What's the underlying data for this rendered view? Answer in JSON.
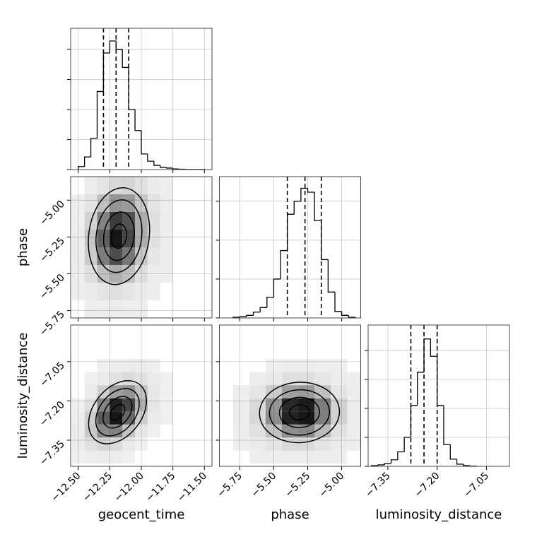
{
  "chart_data": [
    {
      "type": "histogram",
      "bins": [
        -12.5,
        -12.45,
        -12.4,
        -12.35,
        -12.3,
        -12.25,
        -12.2,
        -12.15,
        -12.1,
        -12.05,
        -12,
        -11.95,
        -11.9,
        -11.85,
        -11.8,
        -11.75,
        -11.7,
        -11.65,
        -11.6,
        -11.55,
        -11.5
      ],
      "values": [
        25,
        105,
        260,
        650,
        970,
        1070,
        1000,
        850,
        500,
        325,
        130,
        70,
        35,
        18,
        12,
        5,
        3,
        1,
        1,
        1
      ],
      "quantiles": [
        -12.3,
        -12.2,
        -12.1
      ],
      "color": "#000000",
      "xlim": [
        -12.56,
        -11.44
      ],
      "xticks": [
        -12.5,
        -12.25,
        -12,
        -11.75,
        -11.5
      ],
      "ylim": [
        0,
        1176
      ],
      "yticks": [
        0,
        250,
        500,
        750,
        1000
      ],
      "grid": true
    },
    {
      "type": "hist2d",
      "ylabel": "phase",
      "color": "#000000",
      "x_bins": [
        -12.55,
        -12.45,
        -12.35,
        -12.25,
        -12.15,
        -12.05,
        -11.95,
        -11.85,
        -11.75
      ],
      "y_bins": [
        -5.8,
        -5.68,
        -5.56,
        -5.44,
        -5.32,
        -5.2,
        -5.08,
        -4.96,
        -4.84
      ],
      "values": [
        [
          0,
          1,
          2,
          3,
          2,
          1,
          0,
          0
        ],
        [
          1,
          4,
          10,
          14,
          10,
          4,
          1,
          0
        ],
        [
          2,
          14,
          40,
          55,
          40,
          14,
          3,
          1
        ],
        [
          3,
          30,
          95,
          135,
          100,
          35,
          8,
          1
        ],
        [
          3,
          35,
          120,
          180,
          140,
          55,
          12,
          2
        ],
        [
          2,
          25,
          90,
          150,
          130,
          55,
          14,
          3
        ],
        [
          1,
          10,
          40,
          75,
          70,
          35,
          10,
          2
        ],
        [
          0,
          3,
          10,
          20,
          22,
          12,
          4,
          1
        ]
      ],
      "xlim": [
        -12.56,
        -11.44
      ],
      "xticks": [
        -12.5,
        -12.25,
        -12,
        -11.75,
        -11.5
      ],
      "ylim": [
        -5.8,
        -4.84
      ],
      "yticks": [
        {
          "value": -5.75,
          "label": "−5.75"
        },
        {
          "value": -5.5,
          "label": "−5.50"
        },
        {
          "value": -5.25,
          "label": "−5.25"
        },
        {
          "value": -5,
          "label": "−5.00"
        }
      ],
      "grid": true
    },
    {
      "type": "histogram",
      "bins": [
        -5.8,
        -5.75,
        -5.7,
        -5.65,
        -5.6,
        -5.55,
        -5.5,
        -5.45,
        -5.4,
        -5.35,
        -5.3,
        -5.25,
        -5.2,
        -5.15,
        -5.1,
        -5.05,
        -5,
        -4.95,
        -4.9
      ],
      "values": [
        5,
        10,
        20,
        45,
        80,
        160,
        300,
        520,
        800,
        900,
        1000,
        970,
        750,
        450,
        200,
        50,
        20,
        5
      ],
      "quantiles": [
        -5.4,
        -5.27,
        -5.15
      ],
      "color": "#000000",
      "xlim": [
        -5.9,
        -4.86
      ],
      "xticks": [
        -5.75,
        -5.5,
        -5.25,
        -5
      ],
      "ylim": [
        0,
        1090
      ],
      "yticks": [
        0,
        300,
        600,
        900
      ],
      "grid": true
    },
    {
      "type": "hist2d",
      "xlabel": "geocent_time",
      "ylabel": "luminosity_distance",
      "color": "#000000",
      "x_bins": [
        -12.55,
        -12.45,
        -12.35,
        -12.25,
        -12.15,
        -12.05,
        -11.95,
        -11.85,
        -11.75
      ],
      "y_bins": [
        -7.44,
        -7.39,
        -7.34,
        -7.29,
        -7.24,
        -7.19,
        -7.14,
        -7.09,
        -7.04
      ],
      "values": [
        [
          1,
          3,
          4,
          3,
          1,
          0,
          0,
          0
        ],
        [
          3,
          15,
          25,
          18,
          6,
          1,
          0,
          0
        ],
        [
          4,
          35,
          90,
          95,
          40,
          8,
          1,
          0
        ],
        [
          2,
          30,
          130,
          190,
          120,
          30,
          4,
          1
        ],
        [
          1,
          15,
          95,
          180,
          150,
          55,
          8,
          1
        ],
        [
          0,
          4,
          30,
          70,
          80,
          40,
          8,
          1
        ],
        [
          0,
          1,
          5,
          12,
          18,
          12,
          4,
          1
        ],
        [
          0,
          0,
          1,
          2,
          3,
          3,
          1,
          0
        ]
      ],
      "xlim": [
        -12.56,
        -11.44
      ],
      "xticks": [
        {
          "value": -12.5,
          "label": "−12.50"
        },
        {
          "value": -12.25,
          "label": "−12.25"
        },
        {
          "value": -12,
          "label": "−12.00"
        },
        {
          "value": -11.75,
          "label": "−11.75"
        },
        {
          "value": -11.5,
          "label": "−11.50"
        }
      ],
      "ylim": [
        -7.45,
        -6.91
      ],
      "yticks": [
        {
          "value": -7.35,
          "label": "−7.35"
        },
        {
          "value": -7.2,
          "label": "−7.20"
        },
        {
          "value": -7.05,
          "label": "−7.05"
        }
      ],
      "grid": true
    },
    {
      "type": "hist2d",
      "xlabel": "phase",
      "color": "#000000",
      "x_bins": [
        -5.8,
        -5.68,
        -5.56,
        -5.44,
        -5.32,
        -5.2,
        -5.08,
        -4.96,
        -4.84
      ],
      "y_bins": [
        -7.44,
        -7.39,
        -7.34,
        -7.29,
        -7.24,
        -7.19,
        -7.14,
        -7.09,
        -7.04
      ],
      "values": [
        [
          0,
          1,
          2,
          3,
          3,
          2,
          1,
          0
        ],
        [
          1,
          4,
          10,
          18,
          18,
          10,
          4,
          1
        ],
        [
          2,
          12,
          40,
          80,
          85,
          45,
          12,
          2
        ],
        [
          3,
          20,
          80,
          170,
          180,
          95,
          25,
          3
        ],
        [
          3,
          18,
          75,
          165,
          175,
          95,
          25,
          3
        ],
        [
          2,
          8,
          30,
          65,
          70,
          40,
          10,
          2
        ],
        [
          0,
          2,
          6,
          14,
          15,
          9,
          3,
          1
        ],
        [
          0,
          0,
          1,
          2,
          2,
          1,
          1,
          0
        ]
      ],
      "xlim": [
        -5.9,
        -4.86
      ],
      "xticks": [
        {
          "value": -5.75,
          "label": "−5.75"
        },
        {
          "value": -5.5,
          "label": "−5.50"
        },
        {
          "value": -5.25,
          "label": "−5.25"
        },
        {
          "value": -5,
          "label": "−5.00"
        }
      ],
      "ylim": [
        -7.45,
        -6.91
      ],
      "yticks": [
        -7.35,
        -7.2,
        -7.05
      ],
      "grid": true
    },
    {
      "type": "histogram",
      "xlabel": "luminosity_distance",
      "bins": [
        -7.4,
        -7.38,
        -7.36,
        -7.34,
        -7.32,
        -7.3,
        -7.28,
        -7.26,
        -7.24,
        -7.22,
        -7.2,
        -7.18,
        -7.16,
        -7.14,
        -7.12,
        -7.1,
        -7.08
      ],
      "values": [
        5,
        10,
        20,
        45,
        100,
        200,
        420,
        650,
        880,
        760,
        420,
        150,
        50,
        15,
        5,
        2
      ],
      "quantiles": [
        -7.28,
        -7.24,
        -7.2
      ],
      "color": "#000000",
      "xlim": [
        -7.41,
        -6.98
      ],
      "xticks": [
        {
          "value": -7.35,
          "label": "−7.35"
        },
        {
          "value": -7.2,
          "label": "−7.20"
        },
        {
          "value": -7.05,
          "label": "−7.05"
        }
      ],
      "ylim": [
        0,
        976
      ],
      "yticks": [
        0,
        200,
        400,
        600,
        800
      ],
      "grid": true
    }
  ]
}
